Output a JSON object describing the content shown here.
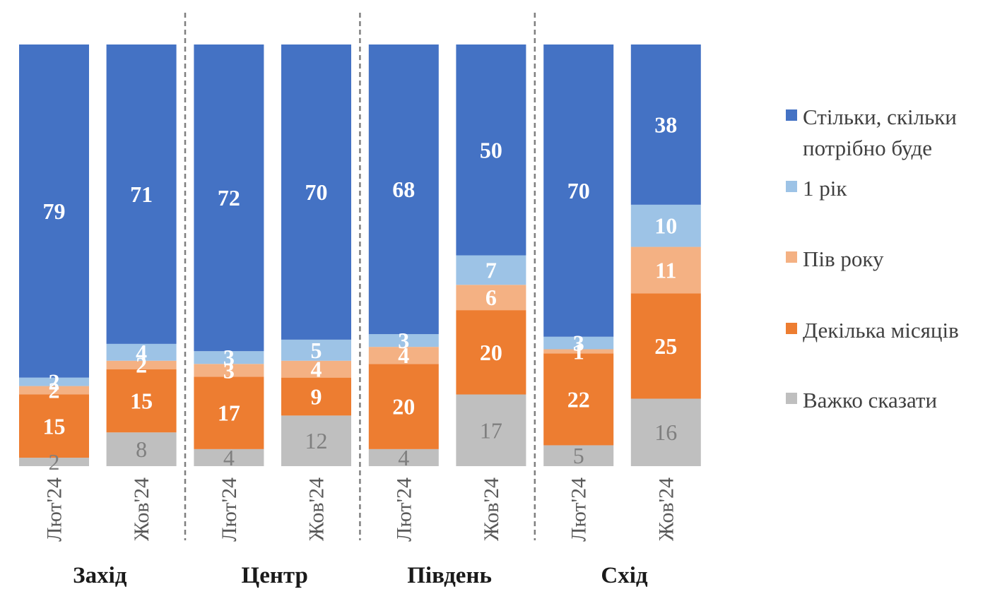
{
  "chart_data": {
    "type": "bar",
    "stacked": true,
    "groups": [
      {
        "name": "Захід",
        "bars": [
          {
            "label": "Лют'24",
            "values": {
              "hard": 2,
              "months": 15,
              "half": 2,
              "year": 2,
              "needed": 79
            }
          },
          {
            "label": "Жов'24",
            "values": {
              "hard": 8,
              "months": 15,
              "half": 2,
              "year": 4,
              "needed": 71
            }
          }
        ]
      },
      {
        "name": "Центр",
        "bars": [
          {
            "label": "Лют'24",
            "values": {
              "hard": 4,
              "months": 17,
              "half": 3,
              "year": 3,
              "needed": 72
            }
          },
          {
            "label": "Жов'24",
            "values": {
              "hard": 12,
              "months": 9,
              "half": 4,
              "year": 5,
              "needed": 70
            }
          }
        ]
      },
      {
        "name": "Південь",
        "bars": [
          {
            "label": "Лют'24",
            "values": {
              "hard": 4,
              "months": 20,
              "half": 4,
              "year": 3,
              "needed": 68
            }
          },
          {
            "label": "Жов'24",
            "values": {
              "hard": 17,
              "months": 20,
              "half": 6,
              "year": 7,
              "needed": 50
            }
          }
        ]
      },
      {
        "name": "Схід",
        "bars": [
          {
            "label": "Лют'24",
            "values": {
              "hard": 5,
              "months": 22,
              "half": 1,
              "year": 3,
              "needed": 70
            }
          },
          {
            "label": "Жов'24",
            "values": {
              "hard": 16,
              "months": 25,
              "half": 11,
              "year": 10,
              "needed": 38
            }
          }
        ]
      }
    ],
    "series": [
      {
        "key": "hard",
        "name": "Важко сказати",
        "color": "#bfbfbf",
        "label_color": "#7f7f7f"
      },
      {
        "key": "months",
        "name": "Декілька місяців",
        "color": "#ed7d31",
        "label_color": "#ffffff"
      },
      {
        "key": "half",
        "name": "Пів року",
        "color": "#f4b183",
        "label_color": "#ffffff"
      },
      {
        "key": "year",
        "name": "1 рік",
        "color": "#9dc3e6",
        "label_color": "#ffffff"
      },
      {
        "key": "needed",
        "name": "Стільки, скільки потрібно буде",
        "legend_lines": [
          "Стільки, скільки",
          "потрібно буде"
        ],
        "color": "#4472c4",
        "label_color": "#ffffff"
      }
    ],
    "legend_position": "right",
    "grid": false
  }
}
